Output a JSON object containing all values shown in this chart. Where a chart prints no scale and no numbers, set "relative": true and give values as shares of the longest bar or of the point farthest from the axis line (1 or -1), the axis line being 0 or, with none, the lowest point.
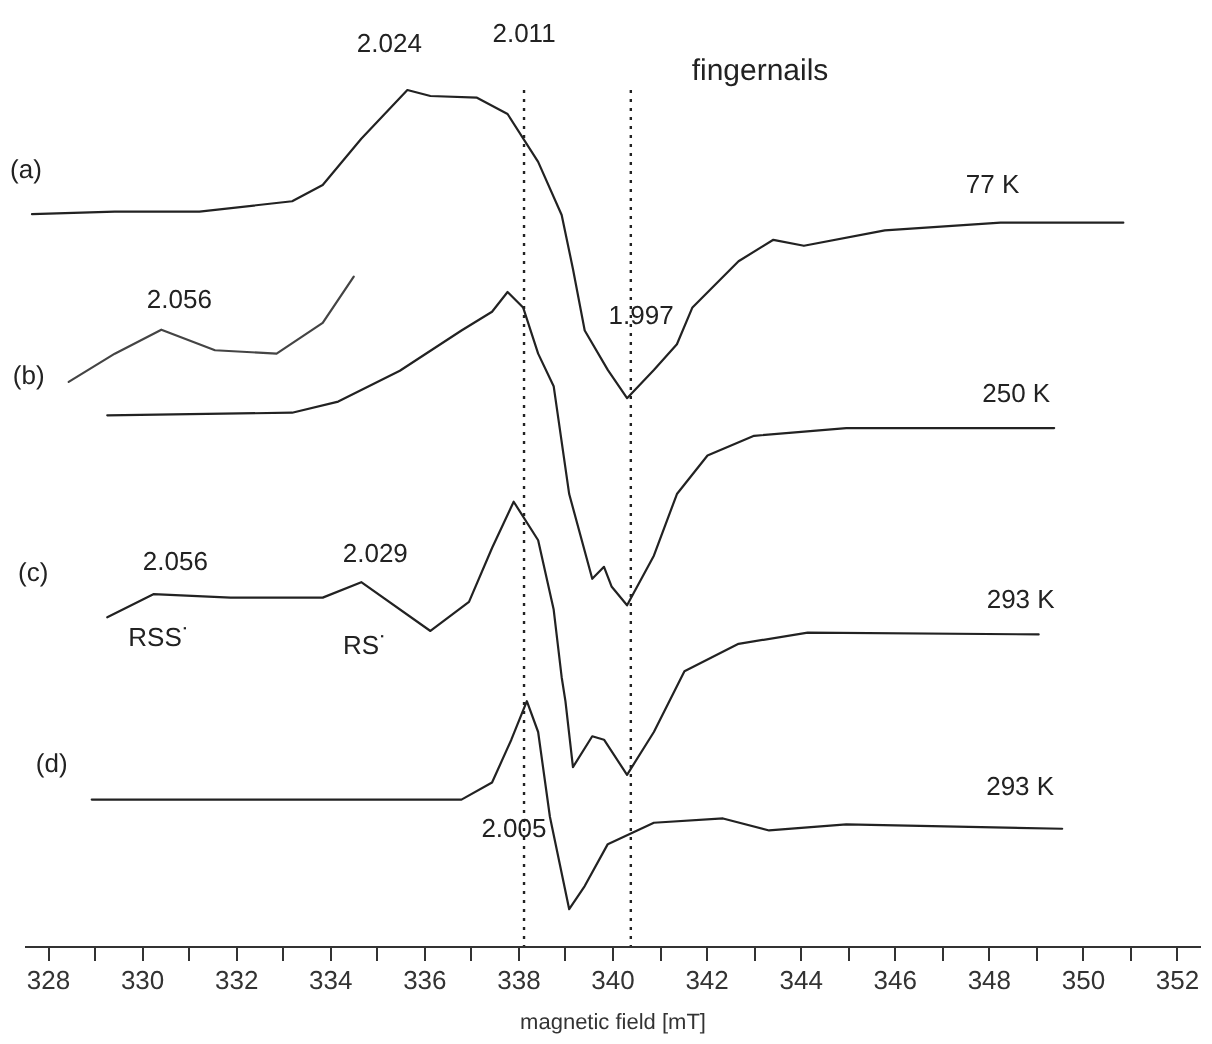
{
  "chart_data": {
    "type": "line",
    "relative": true,
    "xlabel": "magnetic field [mT]",
    "xlim": [
      327.5,
      352.5
    ],
    "xticks": [
      328,
      {
        "value": 329,
        "label": null
      },
      330,
      {
        "value": 331,
        "label": null
      },
      332,
      {
        "value": 333,
        "label": null
      },
      334,
      {
        "value": 335,
        "label": null
      },
      336,
      {
        "value": 337,
        "label": null
      },
      338,
      {
        "value": 339,
        "label": null
      },
      340,
      {
        "value": 341,
        "label": null
      },
      342,
      {
        "value": 343,
        "label": null
      },
      344,
      {
        "value": 345,
        "label": null
      },
      346,
      {
        "value": 347,
        "label": null
      },
      348,
      {
        "value": 349,
        "label": null
      },
      350,
      {
        "value": 351,
        "label": null
      },
      352
    ],
    "grid": false,
    "marker": "none",
    "series": [
      {
        "color": "#222222",
        "x": [
          327.67,
          329.43,
          331.23,
          333.2,
          333.85,
          334.67,
          335.65,
          336.14,
          337.13,
          337.78,
          338.43,
          338.93,
          339.17,
          339.42,
          339.91,
          340.32,
          340.89,
          341.38,
          341.71,
          342.69,
          343.43,
          344.08,
          345.8,
          348.26,
          350.87
        ],
        "values": [
          0.855,
          0.858,
          0.858,
          0.87,
          0.889,
          0.943,
          1,
          0.993,
          0.991,
          0.972,
          0.916,
          0.854,
          0.791,
          0.719,
          0.673,
          0.64,
          0.673,
          0.703,
          0.746,
          0.8,
          0.825,
          0.818,
          0.836,
          0.845,
          0.845
        ]
      },
      {
        "color": "#444444",
        "x": [
          328.45,
          329.43,
          330.42,
          331.56,
          332.87,
          333.85,
          334.51
        ],
        "values": [
          0.659,
          0.692,
          0.72,
          0.696,
          0.692,
          0.728,
          0.782
        ]
      },
      {
        "color": "#222222",
        "x": [
          329.27,
          333.2,
          334.18,
          335.49,
          336.8,
          337.45,
          337.78,
          338.11,
          338.43,
          338.76,
          339.09,
          339.58,
          339.83,
          339.99,
          340.32,
          340.89,
          341.38,
          342.03,
          343.02,
          344.98,
          349.4
        ],
        "values": [
          0.62,
          0.623,
          0.636,
          0.672,
          0.719,
          0.741,
          0.764,
          0.746,
          0.692,
          0.654,
          0.528,
          0.429,
          0.443,
          0.42,
          0.398,
          0.456,
          0.528,
          0.573,
          0.596,
          0.605,
          0.605
        ]
      },
      {
        "color": "#222222",
        "x": [
          329.27,
          330.25,
          331.89,
          333.85,
          334.67,
          336.14,
          336.96,
          337.45,
          337.91,
          338.43,
          338.76,
          338.93,
          339.01,
          339.17,
          339.58,
          339.83,
          340.32,
          340.89,
          341.54,
          342.69,
          344.16,
          349.07
        ],
        "values": [
          0.384,
          0.411,
          0.407,
          0.407,
          0.425,
          0.368,
          0.402,
          0.465,
          0.519,
          0.474,
          0.393,
          0.314,
          0.286,
          0.209,
          0.245,
          0.241,
          0.2,
          0.25,
          0.321,
          0.353,
          0.366,
          0.364
        ]
      },
      {
        "color": "#222222",
        "x": [
          328.94,
          331.89,
          336.8,
          337.45,
          337.86,
          338.19,
          338.43,
          338.68,
          339.09,
          339.42,
          339.91,
          340.89,
          342.36,
          343.34,
          344.98,
          349.57
        ],
        "values": [
          0.171,
          0.171,
          0.171,
          0.191,
          0.241,
          0.286,
          0.25,
          0.151,
          0.043,
          0.07,
          0.119,
          0.144,
          0.149,
          0.135,
          0.142,
          0.137
        ]
      }
    ],
    "ref_lines": [
      {
        "axis": "x",
        "value": 338.13,
        "line_style": "dotted",
        "color": "#222222"
      },
      {
        "axis": "x",
        "value": 340.4,
        "line_style": "dotted",
        "color": "#222222"
      }
    ],
    "title": "fingernails",
    "annotations": [
      {
        "text": "2.024",
        "x": 335.65,
        "y": 1
      },
      {
        "text": "2.011",
        "x": 338.13,
        "y": 1
      },
      {
        "text": "(a)",
        "x": 327.67,
        "y": 0.855
      },
      {
        "text": "77 K",
        "x": 348.26,
        "y": 0.845
      },
      {
        "text": "2.056",
        "x": 330.42,
        "y": 0.72
      },
      {
        "text": "(b)",
        "x": 328.45,
        "y": 0.659
      },
      {
        "text": "1.997",
        "x": 340.32,
        "y": 0.64
      },
      {
        "text": "250 K",
        "x": 349.4,
        "y": 0.605
      },
      {
        "text": "(c)",
        "x": 329.27,
        "y": 0.384
      },
      {
        "text": "2.056",
        "x": 330.25,
        "y": 0.411
      },
      {
        "text": "2.029",
        "x": 334.67,
        "y": 0.425
      },
      {
        "text": "293 K",
        "x": 349.07,
        "y": 0.364
      },
      {
        "text": "RSS˙",
        "x": 330.25,
        "y": 0.411
      },
      {
        "text": "RS˙",
        "x": 334.67,
        "y": 0.425
      },
      {
        "text": "(d)",
        "x": 328.94,
        "y": 0.171
      },
      {
        "text": "293 K",
        "x": 349.57,
        "y": 0.137
      },
      {
        "text": "2.005",
        "x": 338.68,
        "y": 0.151
      }
    ]
  }
}
